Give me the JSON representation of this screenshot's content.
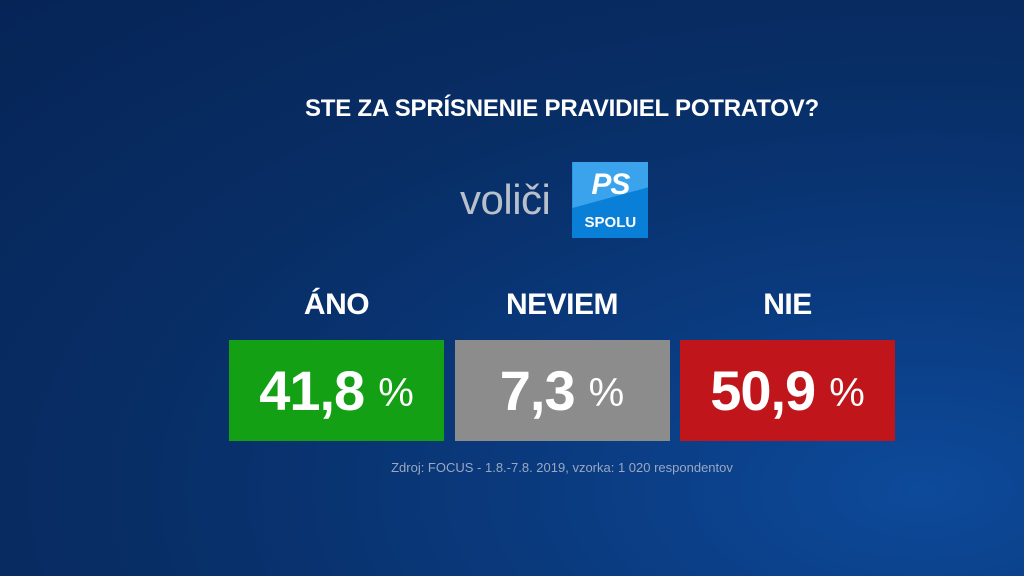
{
  "title": "STE ZA SPRÍSNENIE PRAVIDIEL POTRATOV?",
  "group": {
    "label": "voliči",
    "logo_top": "PS",
    "logo_bottom": "SPOLU",
    "logo_color": "#0a7fd8"
  },
  "unit": "%",
  "chart_data": {
    "type": "bar",
    "categories": [
      "ÁNO",
      "NEVIEM",
      "NIE"
    ],
    "values": [
      41.8,
      7.3,
      50.9
    ],
    "value_labels": [
      "41,8",
      "7,3",
      "50,9"
    ],
    "colors": [
      "#13a014",
      "#8c8c8c",
      "#c0161b"
    ],
    "title": "STE ZA SPRÍSNENIE PRAVIDIEL POTRATOV?",
    "unit": "%"
  },
  "source": "Zdroj: FOCUS - 1.8.-7.8. 2019, vzorka: 1 020 respondentov"
}
